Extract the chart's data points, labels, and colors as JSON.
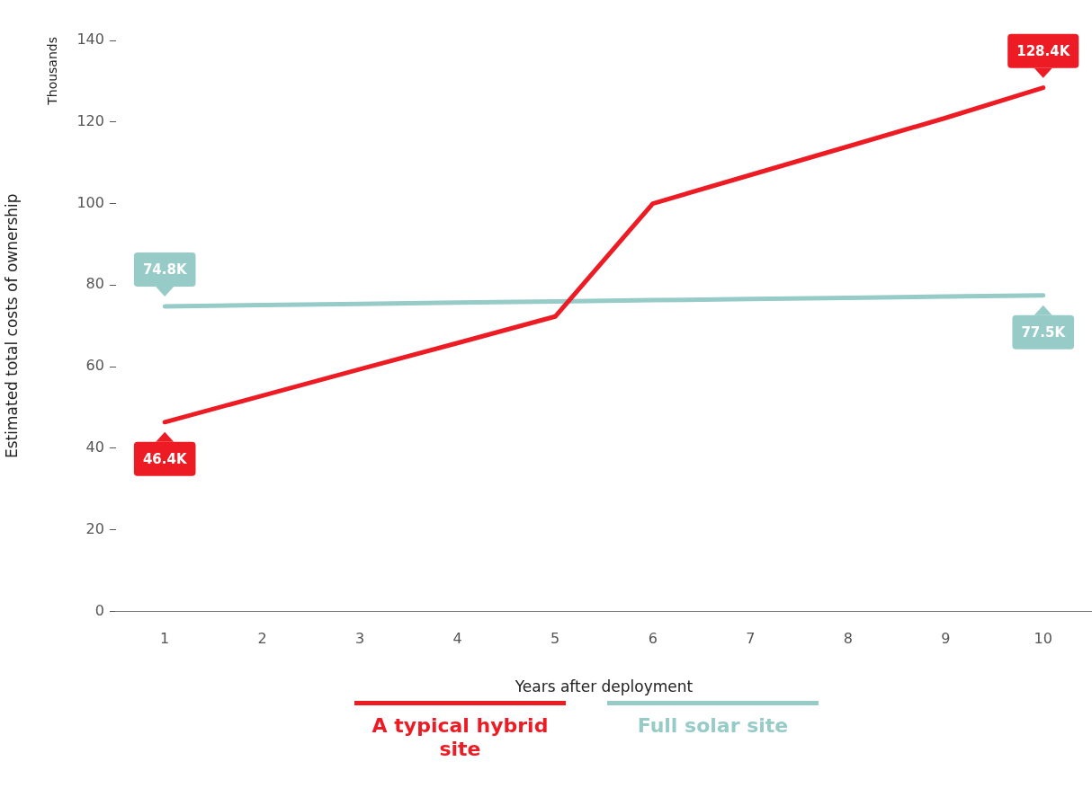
{
  "chart_data": {
    "type": "line",
    "xlabel": "Years after deployment",
    "ylabel": "Estimated total costs of ownership",
    "annotations": [
      "Thousands"
    ],
    "categories": [
      "1",
      "2",
      "3",
      "4",
      "5",
      "6",
      "7",
      "8",
      "9",
      "10"
    ],
    "ylim": [
      0,
      140
    ],
    "yticks": [
      0,
      20,
      40,
      60,
      80,
      100,
      120,
      140
    ],
    "grid": false,
    "legend": "bottom",
    "marker": "none",
    "line_style": "solid",
    "series": [
      {
        "name": "A typical hybrid site",
        "color": "#ed1c24",
        "values": [
          46.4,
          52.9,
          59.4,
          65.8,
          72.3,
          100,
          107,
          114,
          121,
          128.4
        ],
        "value_labels": [
          "46.4K",
          null,
          null,
          null,
          null,
          null,
          null,
          null,
          null,
          "128.4K"
        ]
      },
      {
        "name": "Full solar site",
        "color": "#96cbc8",
        "values": [
          74.8,
          75.1,
          75.4,
          75.7,
          76.0,
          76.3,
          76.6,
          76.9,
          77.2,
          77.5
        ],
        "value_labels": [
          "74.8K",
          null,
          null,
          null,
          null,
          null,
          null,
          null,
          null,
          "77.5K"
        ]
      }
    ]
  }
}
